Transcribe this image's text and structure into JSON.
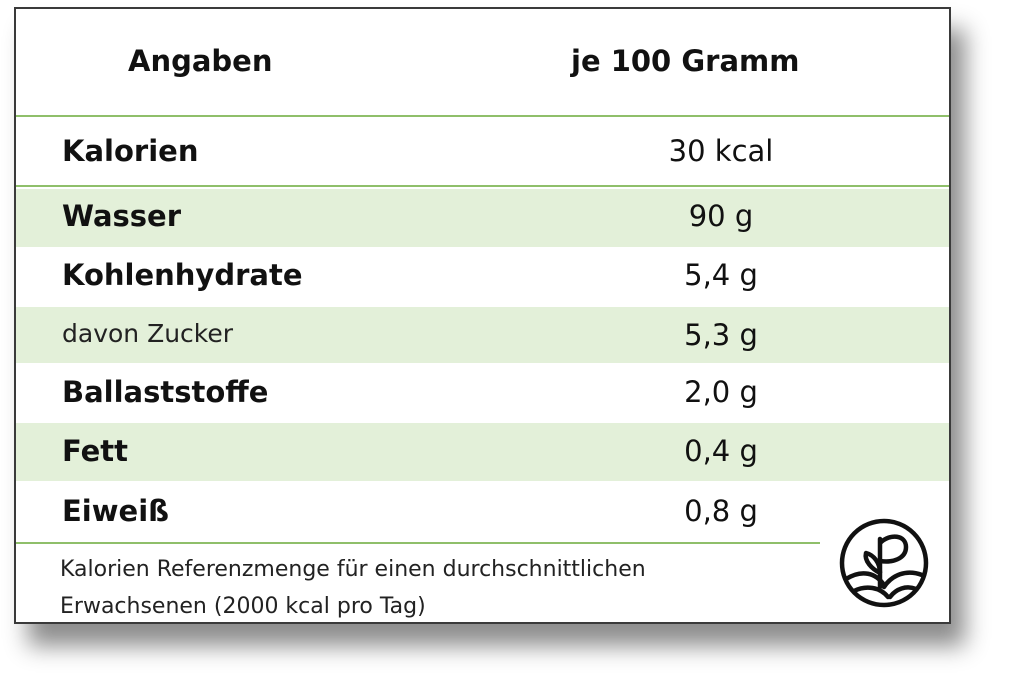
{
  "table": {
    "header": {
      "col1": "Angaben",
      "col2": "je 100 Gramm"
    },
    "rows": [
      {
        "label": "Kalorien",
        "value": "30 kcal",
        "shaded": false
      },
      {
        "label": "Wasser",
        "value": "90 g",
        "shaded": true
      },
      {
        "label": "Kohlenhydrate",
        "value": "5,4 g",
        "shaded": false
      },
      {
        "label": "davon Zucker",
        "value": "5,3 g",
        "shaded": true
      },
      {
        "label": "Ballaststoffe",
        "value": "2,0 g",
        "shaded": false
      },
      {
        "label": "Fett",
        "value": "0,4 g",
        "shaded": true
      },
      {
        "label": "Eiweiß",
        "value": "0,8 g",
        "shaded": false
      }
    ]
  },
  "footnote": {
    "line1": "Kalorien Referenzmenge für einen durchschnittlichen",
    "line2": "Erwachsenen (2000 kcal pro Tag)"
  },
  "logo": {
    "icon": "plant-sprout-logo-icon"
  },
  "colors": {
    "accent_green_line": "#8fbf6a",
    "shaded_row": "#e3f0d9",
    "border": "#3a3a3a"
  }
}
